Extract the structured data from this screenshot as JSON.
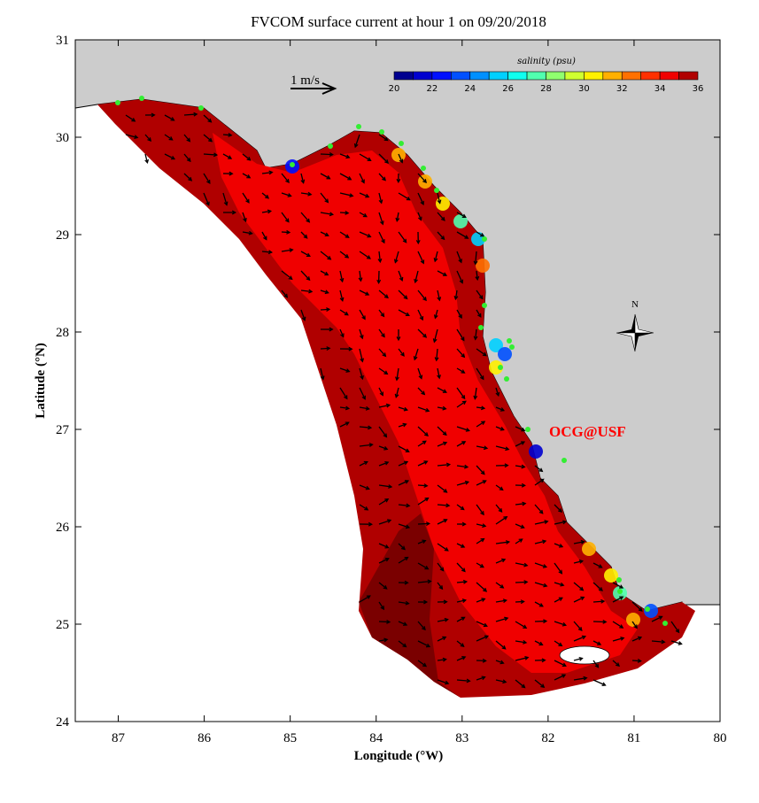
{
  "title": "FVCOM surface current at hour 1 on 09/20/2018",
  "xaxis": {
    "label": "Longitude (°W)",
    "ticks": [
      "87",
      "86",
      "85",
      "84",
      "83",
      "82",
      "81",
      "80"
    ],
    "range": [
      87.5,
      80
    ]
  },
  "yaxis": {
    "label": "Latitude (°N)",
    "ticks": [
      "24",
      "25",
      "26",
      "27",
      "28",
      "29",
      "30",
      "31"
    ],
    "range": [
      24,
      31
    ]
  },
  "scale_arrow": {
    "label": "1 m/s"
  },
  "colorbar": {
    "title": "salinity (psu)",
    "labels": [
      "20",
      "22",
      "24",
      "26",
      "28",
      "30",
      "32",
      "34",
      "36"
    ],
    "colors": [
      "#00008f",
      "#0000cf",
      "#0010ff",
      "#0050ff",
      "#0090ff",
      "#00d0ff",
      "#10ffef",
      "#50ffaf",
      "#90ff6f",
      "#d0ff30",
      "#fff000",
      "#ffb000",
      "#ff7000",
      "#ff3000",
      "#f00000",
      "#b00000"
    ]
  },
  "compass": {
    "label": "N"
  },
  "credit": "OCG@USF",
  "colors": {
    "land": "#cccccc",
    "station": "#33ee33",
    "credit": "#ff0000"
  }
}
